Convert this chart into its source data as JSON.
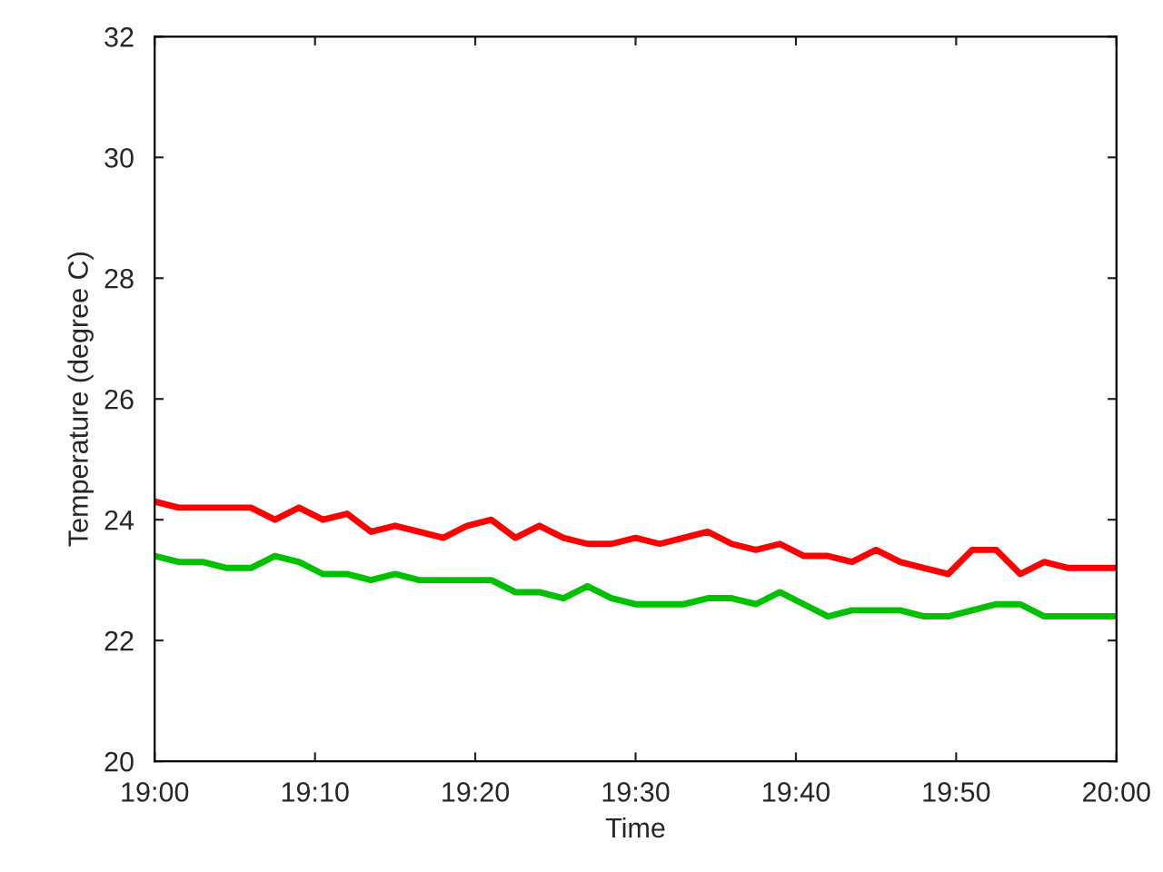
{
  "chart_data": {
    "type": "line",
    "xlabel": "Time",
    "ylabel": "Temperature (degree C)",
    "x": [
      19.0,
      19.025,
      19.05,
      19.075,
      19.1,
      19.125,
      19.15,
      19.175,
      19.2,
      19.225,
      19.25,
      19.275,
      19.3,
      19.325,
      19.35,
      19.375,
      19.4,
      19.425,
      19.45,
      19.475,
      19.5,
      19.525,
      19.55,
      19.575,
      19.6,
      19.625,
      19.65,
      19.675,
      19.7,
      19.725,
      19.75,
      19.775,
      19.8,
      19.825,
      19.85,
      19.875,
      19.9,
      19.925,
      19.95,
      19.975,
      20.0
    ],
    "series": [
      {
        "color": "#ff0000",
        "values": [
          24.3,
          24.2,
          24.2,
          24.2,
          24.2,
          24.0,
          24.2,
          24.0,
          24.1,
          23.8,
          23.9,
          23.8,
          23.7,
          23.9,
          24.0,
          23.7,
          23.9,
          23.7,
          23.6,
          23.6,
          23.7,
          23.6,
          23.7,
          23.8,
          23.6,
          23.5,
          23.6,
          23.4,
          23.4,
          23.3,
          23.5,
          23.3,
          23.2,
          23.1,
          23.5,
          23.5,
          23.1,
          23.3,
          23.2,
          23.2,
          23.2
        ]
      },
      {
        "color": "#00c000",
        "values": [
          23.4,
          23.3,
          23.3,
          23.2,
          23.2,
          23.4,
          23.3,
          23.1,
          23.1,
          23.0,
          23.1,
          23.0,
          23.0,
          23.0,
          23.0,
          22.8,
          22.8,
          22.7,
          22.9,
          22.7,
          22.6,
          22.6,
          22.6,
          22.7,
          22.7,
          22.6,
          22.8,
          22.6,
          22.4,
          22.5,
          22.5,
          22.5,
          22.4,
          22.4,
          22.5,
          22.6,
          22.6,
          22.4,
          22.4,
          22.4,
          22.4
        ]
      }
    ],
    "xlim": [
      19.0,
      20.0
    ],
    "xticks": [
      {
        "value": 19.0,
        "label": "19:00"
      },
      {
        "value": 19.1667,
        "label": "19:10"
      },
      {
        "value": 19.3333,
        "label": "19:20"
      },
      {
        "value": 19.5,
        "label": "19:30"
      },
      {
        "value": 19.6667,
        "label": "19:40"
      },
      {
        "value": 19.8333,
        "label": "19:50"
      },
      {
        "value": 20.0,
        "label": "20:00"
      }
    ],
    "ylim": [
      20,
      32
    ],
    "yticks": [
      20,
      22,
      24,
      26,
      28,
      30,
      32
    ],
    "grid": false,
    "marker": "none",
    "line_style": "solid"
  }
}
